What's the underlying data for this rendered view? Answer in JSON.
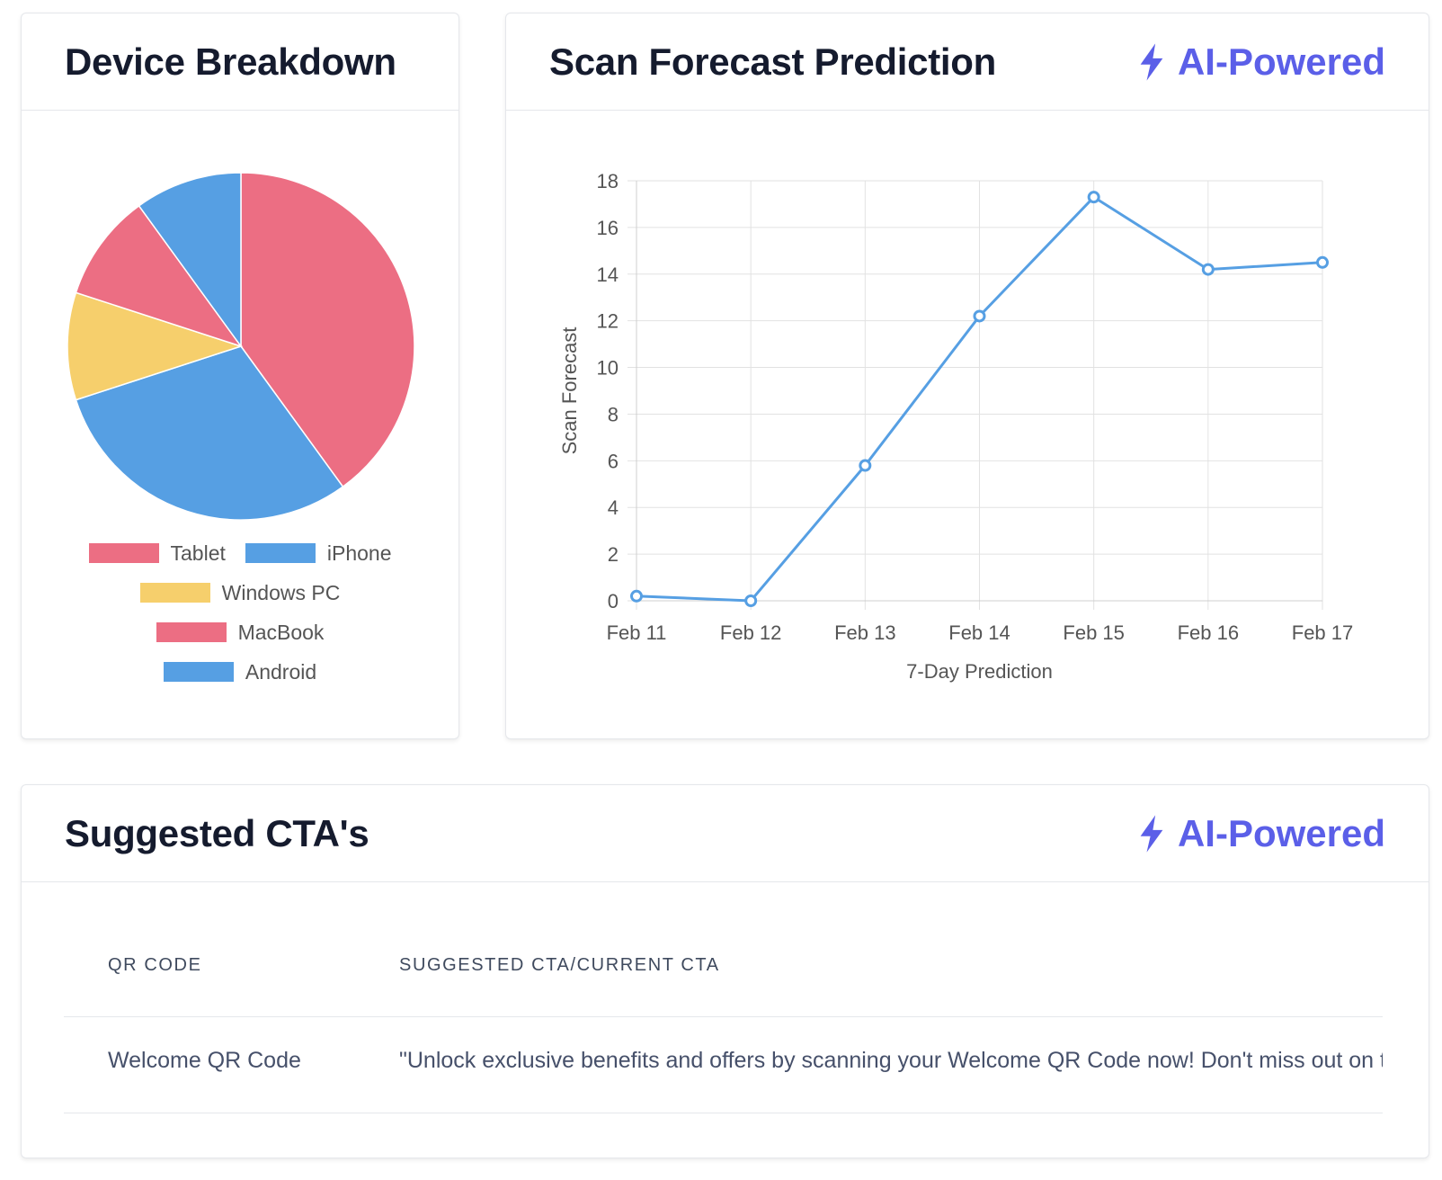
{
  "device_card": {
    "title": "Device Breakdown"
  },
  "forecast_card": {
    "title": "Scan Forecast Prediction",
    "badge": "AI-Powered"
  },
  "cta_card": {
    "title": "Suggested CTA's",
    "badge": "AI-Powered",
    "columns": [
      "QR CODE",
      "SUGGESTED CTA/CURRENT CTA"
    ],
    "rows": [
      {
        "qr_code": "Welcome QR Code",
        "cta": "\"Unlock exclusive benefits and offers by scanning your Welcome QR Code now! Don't miss out on this limited-time opportunity!\""
      }
    ]
  },
  "colors": {
    "pink": "#ec6e83",
    "blue": "#569fe3",
    "yellow": "#f6cf6c",
    "accent": "#5b5fe8",
    "line": "#569fe3"
  },
  "icons": {
    "badge_icon": "lightning-bolt-icon"
  },
  "chart_data": [
    {
      "type": "pie",
      "categories": [
        "Tablet",
        "iPhone",
        "Windows PC",
        "MacBook",
        "Android"
      ],
      "values": [
        40,
        30,
        10,
        10,
        10
      ],
      "colors": [
        "#ec6e83",
        "#569fe3",
        "#f6cf6c",
        "#ec6e83",
        "#569fe3"
      ],
      "legend": "bottom"
    },
    {
      "type": "line",
      "x": [
        "Feb 11",
        "Feb 12",
        "Feb 13",
        "Feb 14",
        "Feb 15",
        "Feb 16",
        "Feb 17"
      ],
      "series": [
        {
          "values": [
            0.2,
            0.0,
            5.8,
            12.2,
            17.3,
            14.2,
            14.5
          ]
        }
      ],
      "xlabel": "7-Day Prediction",
      "ylabel": "Scan Forecast",
      "ylim": [
        0,
        18
      ],
      "yticks": [
        0,
        2,
        4,
        6,
        8,
        10,
        12,
        14,
        16,
        18
      ],
      "grid": true
    }
  ]
}
